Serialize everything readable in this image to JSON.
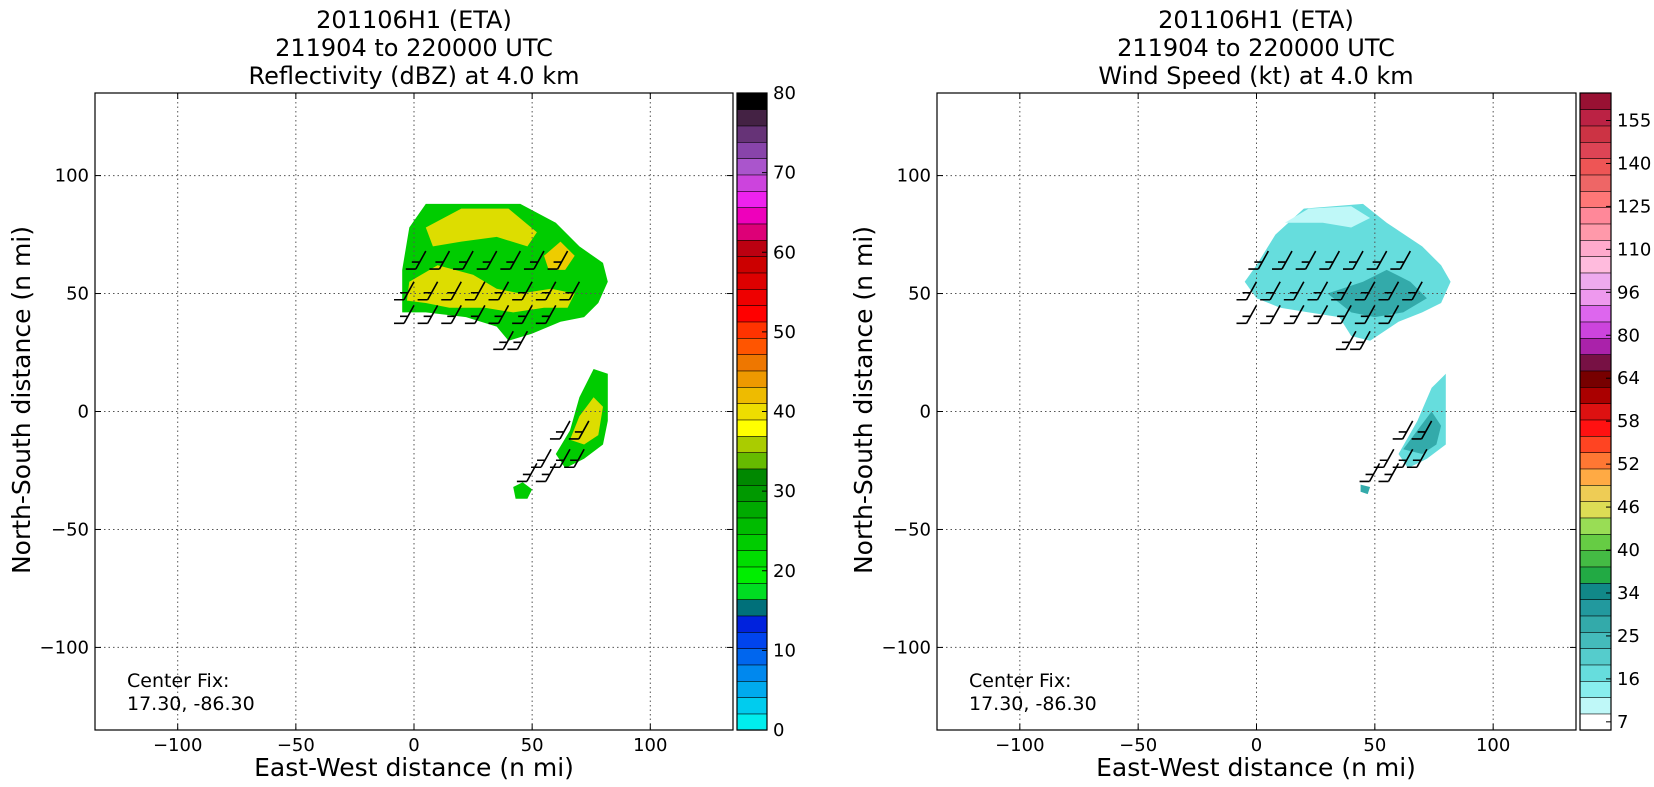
{
  "chart_data": [
    {
      "type": "heatmap",
      "title_lines": [
        "201106H1 (ETA)",
        "211904 to 220000 UTC",
        "Reflectivity (dBZ) at 4.0 km"
      ],
      "xlabel": "East-West distance (n mi)",
      "ylabel": "North-South distance (n mi)",
      "xlim": [
        -135,
        135
      ],
      "ylim": [
        -135,
        135
      ],
      "xticks": [
        -100,
        -50,
        0,
        50,
        100
      ],
      "yticks": [
        -100,
        -50,
        0,
        50,
        100
      ],
      "xtick_labels": [
        "−100",
        "−50",
        "0",
        "50",
        "100"
      ],
      "ytick_labels": [
        "−100",
        "−50",
        "0",
        "50",
        "100"
      ],
      "grid": true,
      "annotation_lines": [
        "Center Fix:",
        "17.30, -86.30"
      ],
      "colorbar": {
        "min": 0,
        "max": 80,
        "tick_labels": [
          "0",
          "10",
          "20",
          "30",
          "40",
          "50",
          "60",
          "70",
          "80"
        ],
        "colors": [
          "#00eeee",
          "#00ccee",
          "#00aaee",
          "#0088ee",
          "#0066ee",
          "#0044ee",
          "#0022dd",
          "#00707a",
          "#00dd22",
          "#00ee00",
          "#00dd00",
          "#00cc00",
          "#00bb00",
          "#00aa00",
          "#009900",
          "#008800",
          "#66bb00",
          "#aacc00",
          "#ffff00",
          "#eedd00",
          "#eebb00",
          "#ee9900",
          "#ee7700",
          "#ff5500",
          "#ff3300",
          "#ff0000",
          "#ee0000",
          "#dd0000",
          "#cc0000",
          "#bb0011",
          "#dd0077",
          "#ee00bb",
          "#ee22ee",
          "#cc44dd",
          "#aa55cc",
          "#8844aa",
          "#663377",
          "#442244",
          "#000000"
        ]
      },
      "fields": [
        {
          "color": "#00cc00",
          "region": [
            [
              -2,
              78
            ],
            [
              5,
              88
            ],
            [
              45,
              88
            ],
            [
              60,
              80
            ],
            [
              70,
              70
            ],
            [
              80,
              63
            ],
            [
              82,
              55
            ],
            [
              78,
              46
            ],
            [
              72,
              40
            ],
            [
              62,
              38
            ],
            [
              50,
              33
            ],
            [
              40,
              30
            ],
            [
              35,
              36
            ],
            [
              22,
              40
            ],
            [
              5,
              42
            ],
            [
              -5,
              42
            ],
            [
              -5,
              60
            ]
          ]
        },
        {
          "color": "#dddd00",
          "region": [
            [
              -2,
              55
            ],
            [
              10,
              62
            ],
            [
              25,
              58
            ],
            [
              35,
              52
            ],
            [
              45,
              50
            ],
            [
              58,
              52
            ],
            [
              68,
              50
            ],
            [
              65,
              44
            ],
            [
              55,
              44
            ],
            [
              42,
              42
            ],
            [
              30,
              44
            ],
            [
              15,
              44
            ],
            [
              5,
              46
            ],
            [
              -3,
              47
            ]
          ]
        },
        {
          "color": "#dddd00",
          "region": [
            [
              5,
              78
            ],
            [
              20,
              86
            ],
            [
              40,
              86
            ],
            [
              52,
              76
            ],
            [
              48,
              70
            ],
            [
              35,
              74
            ],
            [
              20,
              72
            ],
            [
              8,
              70
            ]
          ]
        },
        {
          "color": "#eecc00",
          "region": [
            [
              55,
              66
            ],
            [
              62,
              72
            ],
            [
              68,
              66
            ],
            [
              64,
              60
            ],
            [
              57,
              60
            ]
          ]
        },
        {
          "color": "#00cc00",
          "region": [
            [
              60,
              -18
            ],
            [
              66,
              -8
            ],
            [
              70,
              6
            ],
            [
              76,
              18
            ],
            [
              82,
              16
            ],
            [
              82,
              -4
            ],
            [
              80,
              -14
            ],
            [
              72,
              -20
            ],
            [
              64,
              -24
            ]
          ]
        },
        {
          "color": "#dddd00",
          "region": [
            [
              66,
              -12
            ],
            [
              70,
              -2
            ],
            [
              76,
              6
            ],
            [
              80,
              2
            ],
            [
              78,
              -10
            ],
            [
              72,
              -14
            ]
          ]
        },
        {
          "color": "#00cc00",
          "region": [
            [
              42,
              -32
            ],
            [
              46,
              -30
            ],
            [
              50,
              -33
            ],
            [
              48,
              -37
            ],
            [
              43,
              -37
            ]
          ]
        }
      ],
      "barb_rows": [
        {
          "y": 68,
          "xs": [
            5,
            15,
            25,
            35,
            45,
            55,
            65
          ]
        },
        {
          "y": 55,
          "xs": [
            0,
            10,
            20,
            30,
            40,
            50,
            60,
            70
          ]
        },
        {
          "y": 45,
          "xs": [
            0,
            10,
            20,
            30,
            40,
            50,
            60
          ]
        },
        {
          "y": 34,
          "xs": [
            42,
            48
          ]
        },
        {
          "y": -4,
          "xs": [
            66,
            74
          ]
        },
        {
          "y": -16,
          "xs": [
            58,
            66,
            72
          ]
        },
        {
          "y": -22,
          "xs": [
            52,
            60
          ]
        }
      ]
    },
    {
      "type": "heatmap",
      "title_lines": [
        "201106H1 (ETA)",
        "211904 to 220000 UTC",
        "Wind Speed (kt) at 4.0 km"
      ],
      "xlabel": "East-West distance (n mi)",
      "ylabel": "North-South distance (n mi)",
      "xlim": [
        -135,
        135
      ],
      "ylim": [
        -135,
        135
      ],
      "xticks": [
        -100,
        -50,
        0,
        50,
        100
      ],
      "yticks": [
        -100,
        -50,
        0,
        50,
        100
      ],
      "xtick_labels": [
        "−100",
        "−50",
        "0",
        "50",
        "100"
      ],
      "ytick_labels": [
        "−100",
        "−50",
        "0",
        "50",
        "100"
      ],
      "grid": true,
      "annotation_lines": [
        "Center Fix:",
        "17.30, -86.30"
      ],
      "colorbar": {
        "tick_labels": [
          "7",
          "16",
          "25",
          "34",
          "40",
          "46",
          "52",
          "58",
          "64",
          "80",
          "96",
          "110",
          "125",
          "140",
          "155"
        ],
        "colors": [
          "#ffffff",
          "#bff8f8",
          "#88eeee",
          "#66dddd",
          "#55cccc",
          "#44bbbb",
          "#33aaaa",
          "#22999e",
          "#118888",
          "#22aa44",
          "#44bb44",
          "#66cc44",
          "#99dd55",
          "#dddd55",
          "#eecc55",
          "#ffaa44",
          "#ff7733",
          "#ff4422",
          "#ff1111",
          "#dd1111",
          "#aa0000",
          "#770000",
          "#771144",
          "#aa22aa",
          "#cc44dd",
          "#dd66ee",
          "#ee99ee",
          "#eeaaee",
          "#ffbbdd",
          "#ffaacc",
          "#ff99aa",
          "#ff8899",
          "#ff7777",
          "#ee6666",
          "#ee5555",
          "#dd4455",
          "#cc3344",
          "#bb2244",
          "#991133"
        ]
      },
      "fields": [
        {
          "color": "#66dddd",
          "region": [
            [
              8,
              75
            ],
            [
              20,
              86
            ],
            [
              45,
              88
            ],
            [
              55,
              80
            ],
            [
              70,
              70
            ],
            [
              78,
              62
            ],
            [
              82,
              55
            ],
            [
              78,
              46
            ],
            [
              70,
              42
            ],
            [
              60,
              38
            ],
            [
              48,
              30
            ],
            [
              40,
              32
            ],
            [
              35,
              40
            ],
            [
              22,
              42
            ],
            [
              10,
              44
            ],
            [
              0,
              48
            ],
            [
              -5,
              55
            ],
            [
              0,
              62
            ]
          ]
        },
        {
          "color": "#bff8f8",
          "region": [
            [
              12,
              80
            ],
            [
              22,
              86
            ],
            [
              40,
              87
            ],
            [
              48,
              82
            ],
            [
              40,
              78
            ],
            [
              28,
              80
            ]
          ]
        },
        {
          "color": "#33aaaa",
          "region": [
            [
              30,
              50
            ],
            [
              45,
              55
            ],
            [
              55,
              60
            ],
            [
              65,
              55
            ],
            [
              72,
              48
            ],
            [
              62,
              42
            ],
            [
              50,
              40
            ],
            [
              40,
              42
            ]
          ]
        },
        {
          "color": "#66dddd",
          "region": [
            [
              60,
              -18
            ],
            [
              68,
              -4
            ],
            [
              74,
              10
            ],
            [
              80,
              16
            ],
            [
              80,
              -14
            ],
            [
              72,
              -20
            ],
            [
              64,
              -24
            ]
          ]
        },
        {
          "color": "#33aaaa",
          "region": [
            [
              62,
              -16
            ],
            [
              68,
              -8
            ],
            [
              74,
              0
            ],
            [
              78,
              -6
            ],
            [
              76,
              -14
            ],
            [
              70,
              -18
            ]
          ]
        },
        {
          "color": "#33aaaa",
          "region": [
            [
              44,
              -31
            ],
            [
              48,
              -32
            ],
            [
              47,
              -35
            ],
            [
              44,
              -34
            ]
          ]
        }
      ],
      "barb_rows": [
        {
          "y": 68,
          "xs": [
            5,
            15,
            25,
            35,
            45,
            55,
            65
          ]
        },
        {
          "y": 55,
          "xs": [
            0,
            10,
            20,
            30,
            40,
            50,
            60,
            70
          ]
        },
        {
          "y": 45,
          "xs": [
            0,
            10,
            20,
            30,
            40,
            50,
            60
          ]
        },
        {
          "y": 34,
          "xs": [
            42,
            48
          ]
        },
        {
          "y": -4,
          "xs": [
            66,
            74
          ]
        },
        {
          "y": -16,
          "xs": [
            58,
            66,
            72
          ]
        },
        {
          "y": -22,
          "xs": [
            52,
            60
          ]
        }
      ]
    }
  ]
}
